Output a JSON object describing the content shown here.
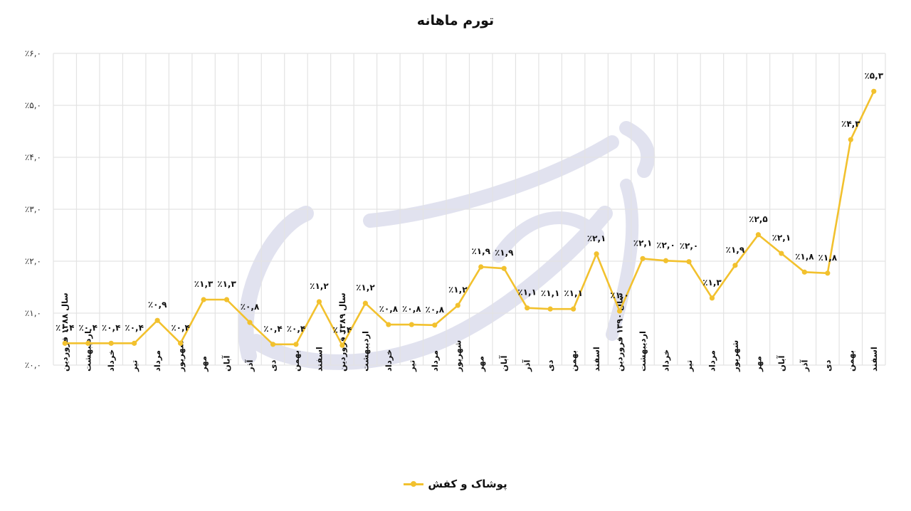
{
  "chart_data": {
    "type": "line",
    "title": "تورم ماهانه",
    "xlabel": "",
    "ylabel": "",
    "ylim": [
      0,
      6
    ],
    "yticks": [
      "٪۰,۰",
      "٪۱,۰",
      "٪۲,۰",
      "٪۳,۰",
      "٪۴,۰",
      "٪۵,۰",
      "٪۶,۰"
    ],
    "grid": true,
    "legend_position": "bottom",
    "colors": {
      "line": "#F2C12E",
      "grid": "#E3E3E3",
      "watermark": "#DCDDEC"
    },
    "categories": [
      "سال ۱۳۸۸ فروردین",
      "اردیبهشت",
      "خرداد",
      "تیر",
      "مرداد",
      "شهریور",
      "مهر",
      "آبان",
      "آذر",
      "دی",
      "بهمن",
      "اسفند",
      "سال ۱۳۸۹ فروردین",
      "اردیبهشت",
      "خرداد",
      "تیر",
      "مرداد",
      "شهریور",
      "مهر",
      "آبان",
      "آذر",
      "دی",
      "بهمن",
      "اسفند",
      "سال ۱۳۹۰ فروردین",
      "اردیبهشت",
      "خرداد",
      "تیر",
      "مرداد",
      "شهریور",
      "مهر",
      "آبان",
      "آذر",
      "دی",
      "بهمن",
      "اسفند"
    ],
    "series": [
      {
        "name": "پوشاک و کفش",
        "values": [
          0.42,
          0.42,
          0.42,
          0.42,
          0.86,
          0.42,
          1.26,
          1.26,
          0.82,
          0.4,
          0.4,
          1.22,
          0.38,
          1.19,
          0.78,
          0.78,
          0.77,
          1.15,
          1.89,
          1.86,
          1.1,
          1.08,
          1.08,
          2.14,
          1.04,
          2.05,
          2.01,
          1.99,
          1.29,
          1.92,
          2.51,
          2.15,
          1.79,
          1.77,
          4.34,
          5.27
        ],
        "data_labels": [
          "٪۰,۴",
          "٪۰,۴",
          "٪۰,۴",
          "٪۰,۴",
          "٪۰,۹",
          "٪۰,۴",
          "٪۱,۳",
          "٪۱,۳",
          "٪۰,۸",
          "٪۰,۴",
          "٪۰,۴",
          "٪۱,۲",
          "٪۰,۴",
          "٪۱,۲",
          "٪۰,۸",
          "٪۰,۸",
          "٪۰,۸",
          "٪۱,۲",
          "٪۱,۹",
          "٪۱,۹",
          "٪۱,۱",
          "٪۱,۱",
          "٪۱,۱",
          "٪۲,۱",
          "٪۱,۰",
          "٪۲,۱",
          "٪۲,۰",
          "٪۲,۰",
          "٪۱,۳",
          "٪۱,۹",
          "٪۲,۵",
          "٪۲,۱",
          "٪۱,۸",
          "٪۱,۸",
          "٪۴,۳",
          "٪۵,۳"
        ]
      }
    ]
  },
  "legend": {
    "label": "پوشاک و کفش"
  }
}
